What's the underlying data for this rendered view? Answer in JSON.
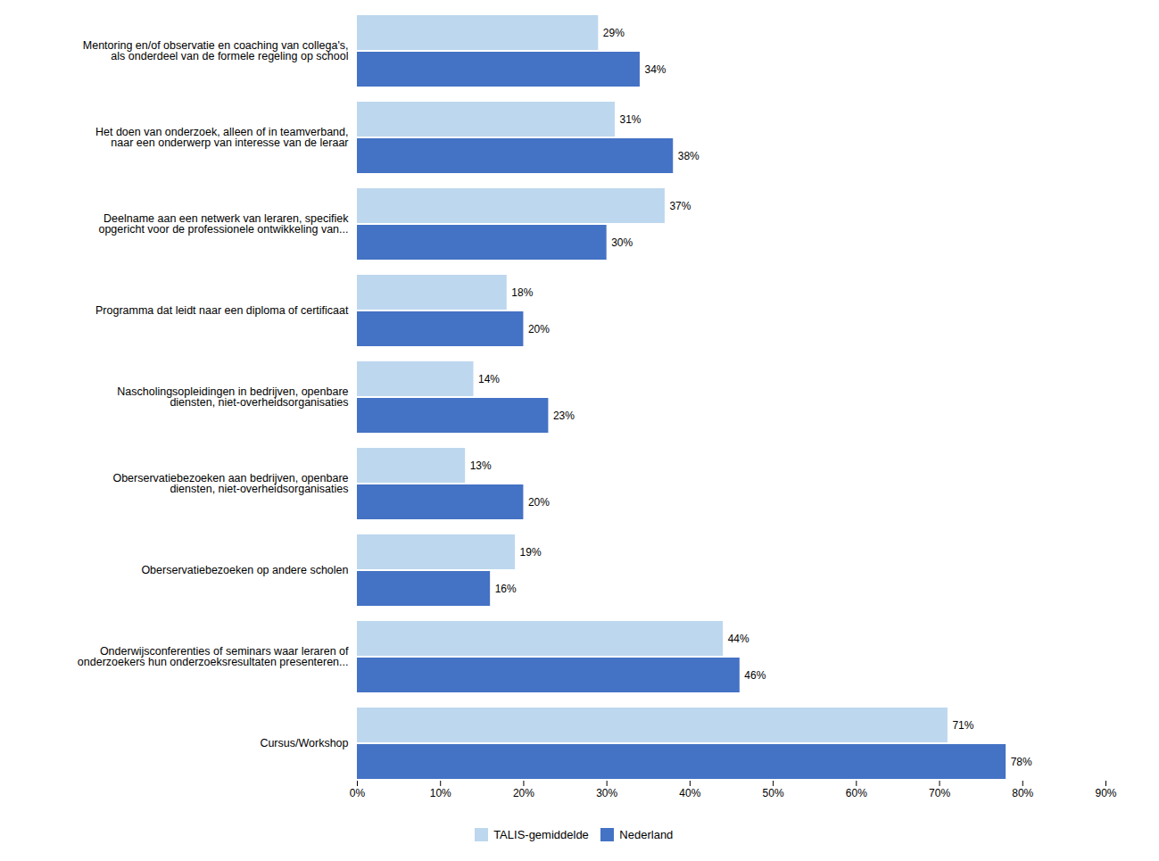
{
  "chart_data": {
    "type": "bar",
    "orientation": "horizontal",
    "categories": [
      "Mentoring en/of observatie en coaching van collega's,\nals onderdeel van de formele regeling op school",
      "Het doen van onderzoek, alleen of in teamverband,\nnaar een onderwerp van interesse van de leraar",
      "Deelname aan een netwerk van leraren, specifiek\nopgericht voor de professionele ontwikkeling van...",
      "Programma dat leidt naar een diploma of certificaat",
      "Nascholingsopleidingen in bedrijven, openbare\ndiensten, niet-overheidsorganisaties",
      "Oberservatiebezoeken aan bedrijven, openbare\ndiensten, niet-overheidsorganisaties",
      "Oberservatiebezoeken op andere scholen",
      "Onderwijsconferenties of seminars waar leraren of\nonderzoekers hun onderzoeksresultaten presenteren...",
      "Cursus/Workshop"
    ],
    "series": [
      {
        "name": "TALIS-gemiddelde",
        "color": "#bdd7ee",
        "values": [
          29,
          31,
          37,
          18,
          14,
          13,
          19,
          44,
          71
        ],
        "value_labels": [
          "29%",
          "31%",
          "37%",
          "18%",
          "14%",
          "13%",
          "19%",
          "44%",
          "71%"
        ]
      },
      {
        "name": "Nederland",
        "color": "#4472c4",
        "values": [
          34,
          38,
          30,
          20,
          23,
          20,
          16,
          46,
          78
        ],
        "value_labels": [
          "34%",
          "38%",
          "30%",
          "20%",
          "23%",
          "20%",
          "16%",
          "46%",
          "78%"
        ]
      }
    ],
    "xlim": [
      0,
      90
    ],
    "xticks": [
      {
        "value": 0,
        "label": "0%"
      },
      {
        "value": 10,
        "label": "10%"
      },
      {
        "value": 20,
        "label": "20%"
      },
      {
        "value": 30,
        "label": "30%"
      },
      {
        "value": 40,
        "label": "40%"
      },
      {
        "value": 50,
        "label": "50%"
      },
      {
        "value": 60,
        "label": "60%"
      },
      {
        "value": 70,
        "label": "70%"
      },
      {
        "value": 80,
        "label": "80%"
      },
      {
        "value": 90,
        "label": "90%"
      }
    ],
    "data_labels": true,
    "legend": "bottom",
    "grid": false
  }
}
